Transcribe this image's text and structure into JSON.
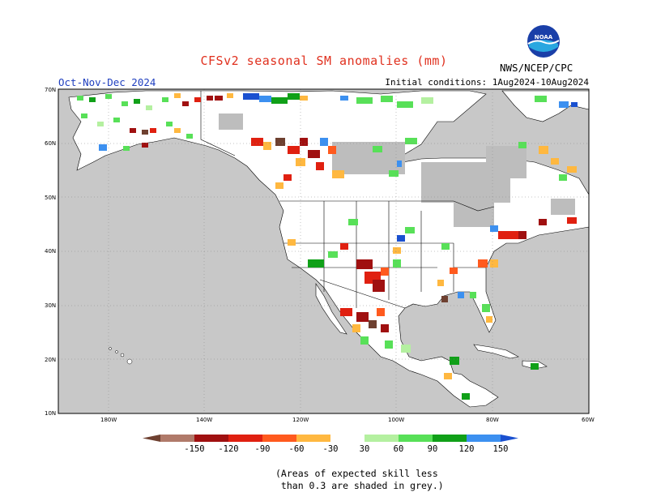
{
  "header": {
    "title": "CFSv2 seasonal SM anomalies (mm)",
    "season": "Oct-Nov-Dec 2024",
    "initial_conditions": "Initial conditions: 1Aug2024-10Aug2024",
    "agency": "NWS/NCEP/CPC",
    "logo_text": "NOAA"
  },
  "map": {
    "lat_labels": [
      "70N",
      "60N",
      "50N",
      "40N",
      "30N",
      "20N",
      "10N"
    ],
    "lon_labels": [
      "180W",
      "140W",
      "120W",
      "100W",
      "80W",
      "60W"
    ],
    "extent": {
      "lon_min": -190,
      "lon_max": -60,
      "lat_min": 10,
      "lat_max": 70
    },
    "colors": {
      "ocean": "#c8c8c8",
      "land": "#ffffff",
      "low_skill": "#bdbdbd",
      "border": "#000000"
    }
  },
  "colorbar": {
    "labels": [
      "-150",
      "-120",
      "-90",
      "-60",
      "-30",
      "30",
      "60",
      "90",
      "120",
      "150"
    ],
    "colors": [
      "#6e4030",
      "#b07a6a",
      "#a01010",
      "#e02010",
      "#ff5a1e",
      "#ffb840",
      "#ffffff",
      "#b4f0a0",
      "#58e058",
      "#10a018",
      "#3c90f0",
      "#1a50d0"
    ]
  },
  "footnote": "(Areas of expected skill less\n than 0.3 are shaded in grey.)"
}
